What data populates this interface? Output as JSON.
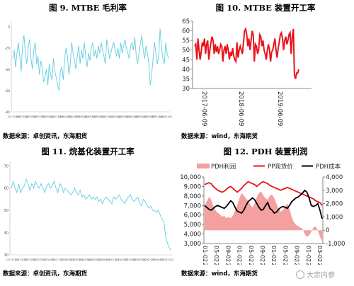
{
  "panels": {
    "p9": {
      "title": "图 9. MTBE 毛利率",
      "source": "数据来源：卓创资讯，东海期货"
    },
    "p10": {
      "title": "图 10. MTBE 装置开工率",
      "source": "数据来源：wind，东海期货"
    },
    "p11": {
      "title": "图 11. 烷基化装置开工率",
      "source": "数据来源：卓创资讯，东海期货"
    },
    "p12": {
      "title": "图 12. PDH 装置利润",
      "source": "数据来源：wind，东海期货"
    }
  },
  "watermark": {
    "text": "大宗内参"
  },
  "colors": {
    "cyan": "#5fcde0",
    "red": "#e8141c",
    "pink": "#f4a0a0",
    "black": "#000000"
  },
  "chart_data": [
    {
      "id": "mtbe-margin",
      "type": "line",
      "title": "",
      "y_ticks": [
        "0",
        "-20",
        "-40",
        "-60",
        "-80"
      ],
      "ylim": [
        -80,
        5
      ],
      "x_ticks": [
        "2017/01/02",
        "2017/03/02",
        "2017/05/02",
        "2017/07/02",
        "2017/09/02",
        "2017/11/02",
        "2018/01/02",
        "2018/03/02",
        "2018/05/02",
        "2018/07/02",
        "2018/09/02",
        "2018/11/02",
        "2019/01/02",
        "2019/03/02",
        "2019/05/02",
        "2019/07/02",
        "2019/09/02",
        "2019/11/02",
        "2020/01/02"
      ],
      "series": [
        {
          "color": "#5fcde0",
          "values": [
            -30,
            -22,
            -38,
            -25,
            -15,
            -28,
            -42,
            -18,
            -8,
            -25,
            -35,
            -20,
            -12,
            -30,
            -40,
            -22,
            -15,
            -35,
            -28,
            -45,
            -32,
            -38,
            -52,
            -48,
            -40,
            -55,
            -35,
            -45,
            -50,
            -30,
            -42,
            -48,
            -55,
            -60,
            -42,
            -38,
            -50,
            -30,
            -20,
            -28,
            -45,
            -35,
            -15,
            -25,
            -32,
            -40,
            -28,
            -18,
            -35,
            -22,
            -30,
            -15,
            -28,
            -38,
            -25,
            -32,
            -20,
            -15,
            -28,
            -22,
            -30,
            -18,
            -25,
            -15,
            -22,
            -28,
            -35,
            -12,
            -20,
            -30,
            -25,
            -18,
            -15,
            -22,
            -28,
            -20,
            -30,
            -15,
            -25,
            -18,
            -12,
            -20,
            -25,
            -30,
            -18,
            -15,
            -22,
            -10,
            -28,
            -35,
            -25,
            -15,
            -8,
            -22,
            -30,
            -18,
            -25,
            -35,
            -55,
            -45,
            -30,
            -15,
            -25,
            -35,
            -28,
            -2,
            -20,
            -30,
            -35,
            -15,
            -25,
            -30
          ]
        }
      ]
    },
    {
      "id": "mtbe-operating-rate",
      "type": "line",
      "title": "",
      "y_ticks": [
        "65",
        "60",
        "55",
        "50",
        "45",
        "40",
        "35",
        "30"
      ],
      "ylim": [
        30,
        65
      ],
      "x_ticks": [
        "2017-06-09",
        "2018-06-09",
        "2019-06-09"
      ],
      "series": [
        {
          "color": "#e8141c",
          "values": [
            52,
            53,
            45,
            56,
            50,
            45,
            49,
            54,
            52,
            56,
            48,
            53,
            55,
            45,
            50,
            54,
            57,
            55,
            48,
            53,
            49,
            52,
            48,
            50,
            53,
            52,
            44,
            50,
            52,
            48,
            53,
            50,
            45,
            49,
            47,
            51,
            47,
            45,
            44,
            54,
            46,
            50,
            52,
            50,
            48,
            54,
            60,
            61,
            58,
            52,
            56,
            50,
            55,
            60,
            58,
            44,
            53,
            52,
            48,
            50,
            58,
            57,
            52,
            55,
            50,
            48,
            45,
            50,
            53,
            50,
            44,
            49,
            50,
            53,
            56,
            50,
            46,
            51,
            54,
            58,
            59,
            56,
            50,
            55,
            57,
            53,
            55,
            58,
            59,
            48,
            57,
            61,
            37,
            35,
            38,
            38,
            40
          ]
        }
      ]
    },
    {
      "id": "alkylation-operating-rate",
      "type": "line",
      "title": "",
      "y_ticks": [
        "70",
        "60",
        "50",
        "40",
        "30"
      ],
      "ylim": [
        30,
        72
      ],
      "x_ticks": [
        "2017/01/02",
        "2017/03/02",
        "2017/05/02",
        "2017/07/02",
        "2017/09/02",
        "2017/11/02",
        "2018/01/02",
        "2018/03/02",
        "2018/05/02",
        "2018/07/02",
        "2018/09/02",
        "2018/11/02",
        "2019/01/02",
        "2019/03/02",
        "2019/05/02",
        "2019/07/02",
        "2019/09/02",
        "2019/11/02"
      ],
      "series": [
        {
          "color": "#5fcde0",
          "values": [
            60,
            63,
            60,
            58,
            62,
            58,
            60,
            61,
            64,
            62,
            59,
            62,
            60,
            63,
            61,
            60,
            62,
            60,
            58,
            61,
            62,
            60,
            61,
            63,
            60,
            58,
            62,
            61,
            58,
            60,
            59,
            58,
            57,
            58,
            60,
            58,
            57,
            59,
            56,
            57,
            55,
            56,
            57,
            55,
            56,
            55,
            56,
            54,
            55,
            53,
            55,
            56,
            55,
            54,
            53,
            56,
            55,
            56,
            57,
            55,
            54,
            53,
            55,
            56,
            57,
            55,
            54,
            55,
            56,
            53,
            52,
            55,
            54,
            52,
            51,
            52,
            50,
            50,
            49,
            50,
            48,
            46,
            45,
            38,
            35,
            33,
            32
          ]
        }
      ]
    },
    {
      "id": "pdh-profit",
      "type": "line",
      "title": "",
      "legend": [
        "PDH利润",
        "PP现货价",
        "PDH成本"
      ],
      "left_y_ticks": [
        "10,000",
        "9,000",
        "8,000",
        "7,000",
        "6,000",
        "5,000",
        "4,000",
        "3,000"
      ],
      "right_y_ticks": [
        "4,000",
        "3,000",
        "2,000",
        "1,000",
        "0",
        "-1,000"
      ],
      "ylim_left": [
        3000,
        10000
      ],
      "ylim_right": [
        -1000,
        4000
      ],
      "x_ticks": [
        "01-02",
        "05-02",
        "09-02",
        "01-02",
        "05-02",
        "09-02",
        "01-02",
        "05-02",
        "09-02",
        "01-02",
        "03-02"
      ],
      "x_year_ticks": [
        "2017-",
        "2017-",
        "2017-",
        "2018-",
        "2018-",
        "2018-",
        "2019-",
        "2019-",
        "2019-",
        "2020-",
        "2020-"
      ],
      "series": [
        {
          "name": "PDH利润",
          "axis": "right",
          "color": "#f4a0a0",
          "type": "area",
          "values": [
            1800,
            2200,
            2500,
            2300,
            1800,
            1500,
            1300,
            1200,
            1000,
            1100,
            900,
            1000,
            900,
            1100,
            1500,
            1900,
            2400,
            2800,
            2600,
            2400,
            2200,
            1900,
            1700,
            2000,
            2500,
            2800,
            2900,
            2600,
            2400,
            2300,
            2600,
            2700,
            2400,
            2000,
            1600,
            1400,
            1500,
            1800,
            2000,
            1600,
            1000,
            600,
            400,
            300,
            200,
            100,
            -300,
            -500,
            -400,
            -100,
            200,
            300,
            0,
            -500,
            -800
          ]
        },
        {
          "name": "PP现货价",
          "axis": "left",
          "color": "#e8141c",
          "type": "line",
          "values": [
            9200,
            9300,
            9400,
            9300,
            9000,
            8800,
            8600,
            8500,
            8400,
            8500,
            8700,
            8900,
            9000,
            8800,
            8600,
            8400,
            8600,
            8800,
            9100,
            9300,
            9500,
            9400,
            9300,
            9200,
            9000,
            9200,
            9400,
            9500,
            9400,
            9300,
            9100,
            9000,
            8900,
            8800,
            8700,
            8600,
            8700,
            8800,
            8900,
            8800,
            8700,
            8600,
            8500,
            8400,
            8300,
            8200,
            8100,
            8000,
            7900,
            7800,
            7700,
            7500,
            7400,
            7300,
            7000
          ]
        },
        {
          "name": "PDH成本",
          "axis": "left",
          "color": "#000000",
          "type": "line",
          "values": [
            7000,
            6800,
            6600,
            6500,
            6700,
            6900,
            7000,
            6900,
            6800,
            6700,
            6900,
            7200,
            7500,
            7300,
            6800,
            6400,
            6300,
            6200,
            6500,
            7000,
            7400,
            7600,
            7800,
            7600,
            7200,
            6800,
            6500,
            6600,
            7000,
            7300,
            6700,
            6500,
            6200,
            6300,
            6600,
            6800,
            6900,
            6800,
            6700,
            7000,
            7400,
            7600,
            7800,
            7900,
            8100,
            8300,
            8600,
            8400,
            7800,
            7000,
            6900,
            7000,
            7200,
            6500,
            5600
          ]
        }
      ]
    }
  ]
}
